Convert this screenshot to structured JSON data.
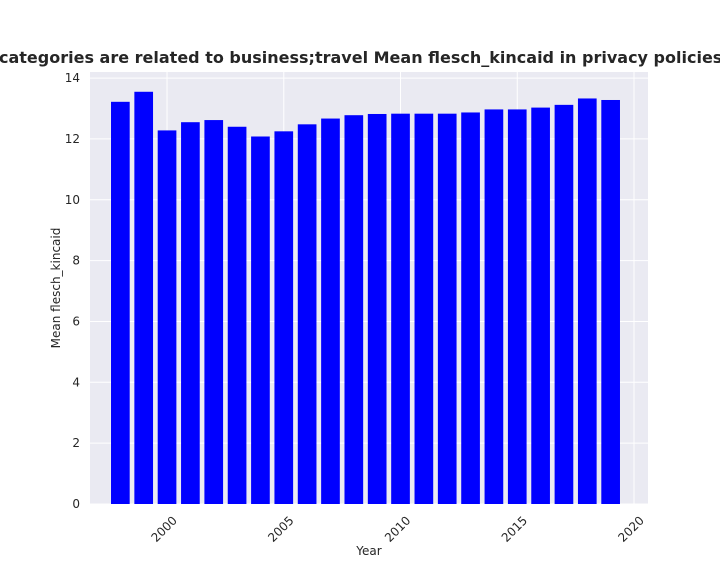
{
  "chart_data": {
    "type": "bar",
    "title": "when categories are related to business;travel Mean flesch_kincaid in privacy policies by Year",
    "xlabel": "Year",
    "ylabel": "Mean flesch_kincaid",
    "x": [
      1998,
      1999,
      2000,
      2001,
      2002,
      2003,
      2004,
      2005,
      2006,
      2007,
      2008,
      2009,
      2010,
      2011,
      2012,
      2013,
      2014,
      2015,
      2016,
      2017,
      2018,
      2019
    ],
    "values": [
      13.22,
      13.55,
      12.28,
      12.55,
      12.62,
      12.4,
      12.08,
      12.25,
      12.48,
      12.67,
      12.78,
      12.82,
      12.83,
      12.83,
      12.83,
      12.87,
      12.97,
      12.97,
      13.03,
      13.12,
      13.33,
      13.28
    ],
    "xlim": [
      1996.7,
      2020.6
    ],
    "ylim": [
      0,
      14.2
    ],
    "x_ticks": [
      2000,
      2005,
      2010,
      2015,
      2020
    ],
    "y_ticks": [
      0,
      2,
      4,
      6,
      8,
      10,
      12,
      14
    ],
    "bar_color": "#0000ff",
    "plot_background": "#eaeaf2",
    "grid": true
  }
}
